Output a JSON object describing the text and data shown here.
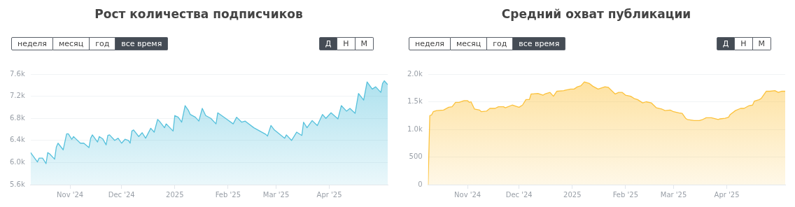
{
  "chart_data": [
    {
      "type": "area",
      "title": "Рост количества подписчиков",
      "annotations": [
        "неделя",
        "месяц",
        "год",
        "все время",
        "Д",
        "Н",
        "М"
      ],
      "x": [
        "2024-10-09",
        "2024-10-13",
        "2024-10-14",
        "2024-10-16",
        "2024-10-18",
        "2024-10-19",
        "2024-10-20",
        "2024-10-23",
        "2024-10-24",
        "2024-10-25",
        "2024-10-28",
        "2024-10-30",
        "2024-10-31",
        "2024-11-02",
        "2024-11-03",
        "2024-11-04",
        "2024-11-07",
        "2024-11-09",
        "2024-11-12",
        "2024-11-13",
        "2024-11-14",
        "2024-11-17",
        "2024-11-18",
        "2024-11-20",
        "2024-11-22",
        "2024-11-23",
        "2024-11-24",
        "2024-11-27",
        "2024-11-29",
        "2024-12-01",
        "2024-12-03",
        "2024-12-05",
        "2024-12-06",
        "2024-12-07",
        "2024-12-08",
        "2024-12-11",
        "2024-12-13",
        "2024-12-15",
        "2024-12-18",
        "2024-12-20",
        "2024-12-22",
        "2024-12-23",
        "2024-12-26",
        "2024-12-27",
        "2024-12-31",
        "2025-01-01",
        "2025-01-03",
        "2025-01-05",
        "2025-01-07",
        "2025-01-09",
        "2025-01-10",
        "2025-01-13",
        "2025-01-15",
        "2025-01-17",
        "2025-01-19",
        "2025-01-22",
        "2025-01-25",
        "2025-01-26",
        "2025-01-31",
        "2025-02-04",
        "2025-02-06",
        "2025-02-09",
        "2025-02-11",
        "2025-02-16",
        "2025-02-23",
        "2025-02-24",
        "2025-02-26",
        "2025-02-28",
        "2025-03-06",
        "2025-03-07",
        "2025-03-10",
        "2025-03-13",
        "2025-03-16",
        "2025-03-17",
        "2025-03-19",
        "2025-03-22",
        "2025-03-25",
        "2025-03-28",
        "2025-03-30",
        "2025-04-02",
        "2025-04-06",
        "2025-04-08",
        "2025-04-11",
        "2025-04-13",
        "2025-04-16",
        "2025-04-18",
        "2025-04-21",
        "2025-04-23",
        "2025-04-26",
        "2025-04-28",
        "2025-05-01",
        "2025-05-02",
        "2025-05-03",
        "2025-05-05"
      ],
      "series": [
        {
          "color": "#56c1dc",
          "values": [
            6180,
            6010,
            6080,
            6080,
            5980,
            6180,
            6160,
            6060,
            6280,
            6350,
            6230,
            6520,
            6520,
            6420,
            6470,
            6440,
            6350,
            6350,
            6270,
            6440,
            6500,
            6370,
            6470,
            6430,
            6320,
            6490,
            6500,
            6400,
            6440,
            6350,
            6420,
            6400,
            6350,
            6570,
            6590,
            6470,
            6540,
            6440,
            6620,
            6550,
            6780,
            6750,
            6630,
            6700,
            6570,
            6850,
            6820,
            6730,
            7030,
            6940,
            6870,
            6820,
            6750,
            6980,
            6850,
            6800,
            6700,
            6900,
            6790,
            6700,
            6820,
            6730,
            6750,
            6630,
            6510,
            6480,
            6670,
            6590,
            6440,
            6500,
            6400,
            6550,
            6490,
            6730,
            6630,
            6760,
            6670,
            6870,
            6800,
            6900,
            6790,
            7030,
            6930,
            6980,
            6890,
            7250,
            7130,
            7460,
            7330,
            7370,
            7270,
            7430,
            7480,
            7410
          ]
        }
      ],
      "xlim": [
        "2024-10-09",
        "2025-05-05"
      ],
      "xticks": [
        {
          "value": "2024-11-01",
          "label": "Nov '24"
        },
        {
          "value": "2024-12-01",
          "label": "Dec '24"
        },
        {
          "value": "2025-01-01",
          "label": "2025"
        },
        {
          "value": "2025-02-01",
          "label": "Feb '25"
        },
        {
          "value": "2025-03-01",
          "label": "Mar '25"
        },
        {
          "value": "2025-04-01",
          "label": "Apr '25"
        }
      ],
      "ylim": [
        5600,
        7600
      ],
      "yticks": [
        {
          "value": 5600,
          "label": "5.6k"
        },
        {
          "value": 6000,
          "label": "6.0k"
        },
        {
          "value": 6400,
          "label": "6.4k"
        },
        {
          "value": 6800,
          "label": "6.8k"
        },
        {
          "value": 7200,
          "label": "7.2k"
        },
        {
          "value": 7600,
          "label": "7.6k"
        }
      ],
      "grid": "y",
      "legend": false,
      "marker": "none"
    },
    {
      "type": "area",
      "title": "Средний охват публикации",
      "annotations": [
        "неделя",
        "месяц",
        "год",
        "все время",
        "Д",
        "Н",
        "М"
      ],
      "x": [
        "2024-10-09",
        "2024-10-10",
        "2024-10-11",
        "2024-10-12",
        "2024-10-14",
        "2024-10-18",
        "2024-10-21",
        "2024-10-23",
        "2024-10-25",
        "2024-10-27",
        "2024-10-30",
        "2024-11-01",
        "2024-11-02",
        "2024-11-03",
        "2024-11-05",
        "2024-11-08",
        "2024-11-09",
        "2024-11-12",
        "2024-11-14",
        "2024-11-17",
        "2024-11-19",
        "2024-11-22",
        "2024-11-23",
        "2024-11-27",
        "2024-11-30",
        "2024-12-01",
        "2024-12-03",
        "2024-12-05",
        "2024-12-07",
        "2024-12-08",
        "2024-12-12",
        "2024-12-15",
        "2024-12-16",
        "2024-12-19",
        "2024-12-21",
        "2024-12-23",
        "2024-12-27",
        "2024-12-28",
        "2024-12-31",
        "2025-01-02",
        "2025-01-04",
        "2025-01-06",
        "2025-01-08",
        "2025-01-11",
        "2025-01-13",
        "2025-01-16",
        "2025-01-20",
        "2025-01-22",
        "2025-01-26",
        "2025-01-28",
        "2025-01-30",
        "2025-02-01",
        "2025-02-04",
        "2025-02-06",
        "2025-02-08",
        "2025-02-11",
        "2025-02-13",
        "2025-02-16",
        "2025-02-19",
        "2025-02-22",
        "2025-02-24",
        "2025-02-27",
        "2025-03-01",
        "2025-03-04",
        "2025-03-06",
        "2025-03-08",
        "2025-03-09",
        "2025-03-13",
        "2025-03-16",
        "2025-03-18",
        "2025-03-20",
        "2025-03-23",
        "2025-03-27",
        "2025-03-28",
        "2025-03-31",
        "2025-04-02",
        "2025-04-03",
        "2025-04-06",
        "2025-04-09",
        "2025-04-11",
        "2025-04-14",
        "2025-04-16",
        "2025-04-17",
        "2025-04-20",
        "2025-04-21",
        "2025-04-24",
        "2025-04-26",
        "2025-04-29",
        "2025-05-01",
        "2025-05-03",
        "2025-05-05"
      ],
      "series": [
        {
          "color": "#fcc23c",
          "values": [
            0,
            1250,
            1260,
            1320,
            1340,
            1350,
            1400,
            1410,
            1490,
            1490,
            1520,
            1520,
            1490,
            1500,
            1370,
            1350,
            1320,
            1330,
            1380,
            1380,
            1410,
            1410,
            1390,
            1440,
            1410,
            1400,
            1440,
            1540,
            1540,
            1640,
            1650,
            1620,
            1640,
            1670,
            1600,
            1690,
            1700,
            1710,
            1730,
            1730,
            1770,
            1790,
            1860,
            1830,
            1780,
            1730,
            1770,
            1760,
            1640,
            1670,
            1670,
            1620,
            1600,
            1560,
            1540,
            1480,
            1500,
            1480,
            1390,
            1370,
            1340,
            1350,
            1320,
            1300,
            1290,
            1200,
            1180,
            1160,
            1160,
            1180,
            1210,
            1210,
            1180,
            1190,
            1200,
            1220,
            1270,
            1340,
            1380,
            1380,
            1430,
            1440,
            1510,
            1540,
            1560,
            1690,
            1690,
            1700,
            1670,
            1690,
            1690
          ]
        }
      ],
      "xlim": [
        "2024-10-09",
        "2025-05-05"
      ],
      "xticks": [
        {
          "value": "2024-11-01",
          "label": "Nov '24"
        },
        {
          "value": "2024-12-01",
          "label": "Dec '24"
        },
        {
          "value": "2025-01-01",
          "label": "2025"
        },
        {
          "value": "2025-02-01",
          "label": "Feb '25"
        },
        {
          "value": "2025-03-01",
          "label": "Mar '25"
        },
        {
          "value": "2025-04-01",
          "label": "Apr '25"
        }
      ],
      "ylim": [
        0,
        2000
      ],
      "yticks": [
        0,
        500,
        {
          "value": 1000,
          "label": "1.0k"
        },
        {
          "value": 1500,
          "label": "1.5k"
        },
        {
          "value": 2000,
          "label": "2.0k"
        }
      ],
      "grid": "y",
      "legend": false,
      "marker": "none"
    }
  ]
}
